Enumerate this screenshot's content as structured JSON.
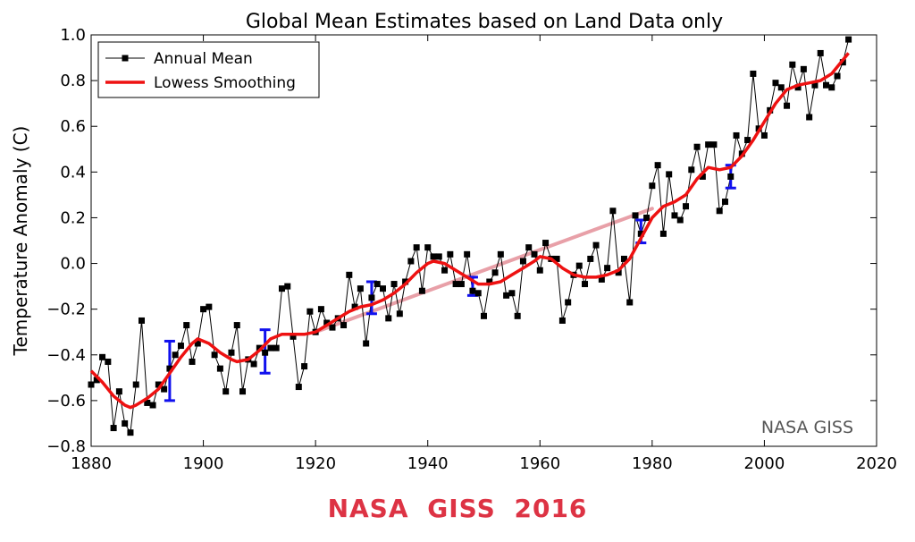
{
  "chart_data": {
    "type": "line",
    "title": "Global Mean Estimates based on Land Data only",
    "xlabel": "",
    "ylabel": "Temperature Anomaly (C)",
    "xlim": [
      1880,
      2020
    ],
    "ylim": [
      -0.8,
      1.0
    ],
    "x_ticks": [
      "1880",
      "1900",
      "1920",
      "1940",
      "1960",
      "1980",
      "2000",
      "2020"
    ],
    "y_ticks": [
      "−0.8",
      "−0.6",
      "−0.4",
      "−0.2",
      "0.0",
      "0.2",
      "0.4",
      "0.6",
      "0.8",
      "1.0"
    ],
    "legend_position": "top-left",
    "watermark": "NASA GISS",
    "series": [
      {
        "name": "Annual Mean",
        "color": "#000000",
        "marker": "square",
        "x": [
          1880,
          1881,
          1882,
          1883,
          1884,
          1885,
          1886,
          1887,
          1888,
          1889,
          1890,
          1891,
          1892,
          1893,
          1894,
          1895,
          1896,
          1897,
          1898,
          1899,
          1900,
          1901,
          1902,
          1903,
          1904,
          1905,
          1906,
          1907,
          1908,
          1909,
          1910,
          1911,
          1912,
          1913,
          1914,
          1915,
          1916,
          1917,
          1918,
          1919,
          1920,
          1921,
          1922,
          1923,
          1924,
          1925,
          1926,
          1927,
          1928,
          1929,
          1930,
          1931,
          1932,
          1933,
          1934,
          1935,
          1936,
          1937,
          1938,
          1939,
          1940,
          1941,
          1942,
          1943,
          1944,
          1945,
          1946,
          1947,
          1948,
          1949,
          1950,
          1951,
          1952,
          1953,
          1954,
          1955,
          1956,
          1957,
          1958,
          1959,
          1960,
          1961,
          1962,
          1963,
          1964,
          1965,
          1966,
          1967,
          1968,
          1969,
          1970,
          1971,
          1972,
          1973,
          1974,
          1975,
          1976,
          1977,
          1978,
          1979,
          1980,
          1981,
          1982,
          1983,
          1984,
          1985,
          1986,
          1987,
          1988,
          1989,
          1990,
          1991,
          1992,
          1993,
          1994,
          1995,
          1996,
          1997,
          1998,
          1999,
          2000,
          2001,
          2002,
          2003,
          2004,
          2005,
          2006,
          2007,
          2008,
          2009,
          2010,
          2011,
          2012,
          2013,
          2014,
          2015
        ],
        "y": [
          -0.53,
          -0.51,
          -0.41,
          -0.43,
          -0.72,
          -0.56,
          -0.7,
          -0.74,
          -0.53,
          -0.25,
          -0.61,
          -0.62,
          -0.53,
          -0.55,
          -0.46,
          -0.4,
          -0.36,
          -0.27,
          -0.43,
          -0.35,
          -0.2,
          -0.19,
          -0.4,
          -0.46,
          -0.56,
          -0.39,
          -0.27,
          -0.56,
          -0.42,
          -0.44,
          -0.37,
          -0.39,
          -0.37,
          -0.37,
          -0.11,
          -0.1,
          -0.32,
          -0.54,
          -0.45,
          -0.21,
          -0.3,
          -0.2,
          -0.26,
          -0.28,
          -0.24,
          -0.27,
          -0.05,
          -0.19,
          -0.11,
          -0.35,
          -0.15,
          -0.09,
          -0.11,
          -0.24,
          -0.09,
          -0.22,
          -0.08,
          0.01,
          0.07,
          -0.12,
          0.07,
          0.03,
          0.03,
          -0.03,
          0.04,
          -0.09,
          -0.09,
          0.04,
          -0.12,
          -0.13,
          -0.23,
          -0.08,
          -0.04,
          0.04,
          -0.14,
          -0.13,
          -0.23,
          0.01,
          0.07,
          0.04,
          -0.03,
          0.09,
          0.02,
          0.02,
          -0.25,
          -0.17,
          -0.05,
          -0.01,
          -0.09,
          0.02,
          0.08,
          -0.07,
          -0.02,
          0.23,
          -0.04,
          0.02,
          -0.17,
          0.21,
          0.13,
          0.2,
          0.34,
          0.43,
          0.13,
          0.39,
          0.21,
          0.19,
          0.25,
          0.41,
          0.51,
          0.38,
          0.52,
          0.52,
          0.23,
          0.27,
          0.38,
          0.56,
          0.48,
          0.54,
          0.83,
          0.59,
          0.56,
          0.67,
          0.79,
          0.77,
          0.69,
          0.87,
          0.77,
          0.85,
          0.64,
          0.78,
          0.92,
          0.78,
          0.77,
          0.82,
          0.88,
          0.98
        ]
      },
      {
        "name": "Lowess Smoothing",
        "color": "#ee1111",
        "x": [
          1880,
          1882,
          1884,
          1886,
          1887,
          1888,
          1890,
          1892,
          1894,
          1896,
          1898,
          1899,
          1901,
          1903,
          1905,
          1906,
          1908,
          1910,
          1912,
          1914,
          1916,
          1918,
          1920,
          1922,
          1924,
          1926,
          1928,
          1930,
          1932,
          1934,
          1936,
          1938,
          1940,
          1941,
          1943,
          1945,
          1947,
          1949,
          1951,
          1953,
          1955,
          1957,
          1959,
          1960,
          1962,
          1964,
          1966,
          1968,
          1970,
          1972,
          1974,
          1976,
          1978,
          1980,
          1982,
          1984,
          1986,
          1988,
          1990,
          1992,
          1994,
          1996,
          1998,
          2000,
          2002,
          2004,
          2006,
          2008,
          2010,
          2012,
          2015
        ],
        "y": [
          -0.47,
          -0.52,
          -0.58,
          -0.62,
          -0.63,
          -0.62,
          -0.59,
          -0.55,
          -0.48,
          -0.41,
          -0.35,
          -0.33,
          -0.35,
          -0.39,
          -0.42,
          -0.43,
          -0.42,
          -0.38,
          -0.33,
          -0.31,
          -0.31,
          -0.31,
          -0.3,
          -0.27,
          -0.24,
          -0.21,
          -0.19,
          -0.18,
          -0.16,
          -0.13,
          -0.09,
          -0.04,
          0.0,
          0.01,
          0.0,
          -0.03,
          -0.06,
          -0.09,
          -0.09,
          -0.08,
          -0.05,
          -0.02,
          0.01,
          0.03,
          0.02,
          -0.02,
          -0.05,
          -0.06,
          -0.06,
          -0.05,
          -0.03,
          0.02,
          0.11,
          0.2,
          0.25,
          0.27,
          0.3,
          0.37,
          0.42,
          0.41,
          0.42,
          0.47,
          0.54,
          0.62,
          0.7,
          0.76,
          0.78,
          0.79,
          0.8,
          0.83,
          0.92
        ]
      },
      {
        "name": "",
        "color": "#e8a0a8",
        "x": [
          1920,
          1980
        ],
        "y": [
          -0.3,
          0.24
        ]
      }
    ],
    "error_bars": {
      "color": "#1010ee",
      "x": [
        1894,
        1911,
        1930,
        1948,
        1978,
        1994
      ],
      "low": [
        -0.6,
        -0.48,
        -0.22,
        -0.14,
        0.09,
        0.33
      ],
      "high": [
        -0.34,
        -0.29,
        -0.08,
        -0.06,
        0.19,
        0.43
      ]
    }
  },
  "footer": {
    "banner_text": "NASA  GISS 2016",
    "banner_color": "#dd3344"
  }
}
